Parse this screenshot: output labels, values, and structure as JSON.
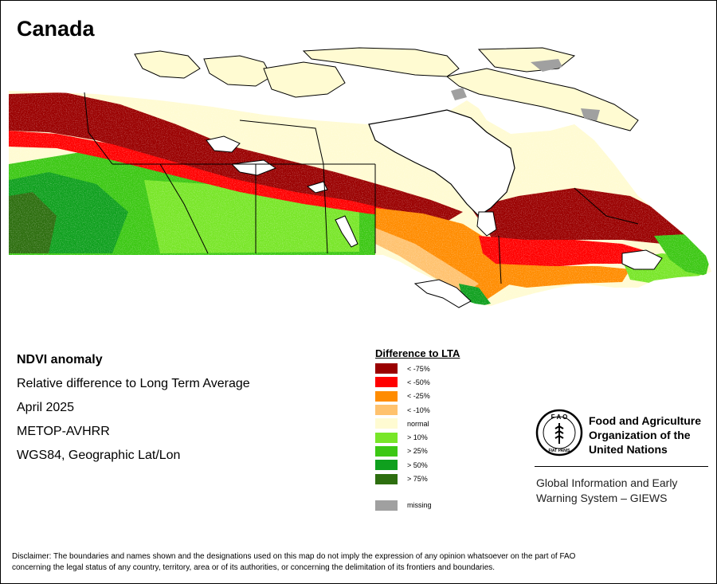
{
  "map": {
    "title": "Canada",
    "colors": {
      "dark_red": "#9a0000",
      "red": "#ff0000",
      "orange": "#ff8c00",
      "light_orange": "#ffc26e",
      "normal": "#fffbd2",
      "light_green": "#78e628",
      "green": "#3cc814",
      "mid_green": "#0fa01e",
      "dark_green": "#2d6e0f",
      "missing": "#a0a0a0",
      "water": "#ffffff",
      "border": "#000000"
    }
  },
  "info": {
    "product": "NDVI anomaly",
    "description": "Relative difference to Long Term Average",
    "period": "April 2025",
    "sensor": "METOP-AVHRR",
    "projection": "WGS84, Geographic Lat/Lon"
  },
  "legend": {
    "title": "Difference to LTA",
    "items": [
      {
        "label": "< -75%",
        "color": "#9a0000"
      },
      {
        "label": "< -50%",
        "color": "#ff0000"
      },
      {
        "label": "< -25%",
        "color": "#ff8c00"
      },
      {
        "label": "< -10%",
        "color": "#ffc26e"
      },
      {
        "label": "normal",
        "color": "#fffbd2"
      },
      {
        "label": "> 10%",
        "color": "#78e628"
      },
      {
        "label": "> 25%",
        "color": "#3cc814"
      },
      {
        "label": "> 50%",
        "color": "#0fa01e"
      },
      {
        "label": "> 75%",
        "color": "#2d6e0f"
      }
    ],
    "missing": {
      "label": "missing",
      "color": "#a0a0a0"
    }
  },
  "organization": {
    "name_line1": "Food and Agriculture",
    "name_line2": "Organization of the",
    "name_line3": "United Nations",
    "logo_letters": "F A O",
    "logo_motto": "FIAT PANIS",
    "system_line1": "Global Information and Early",
    "system_line2": "Warning System – GIEWS"
  },
  "disclaimer": {
    "line1": "Disclaimer: The boundaries and names shown and the designations used on this map do not imply the expression of any opinion whatsoever on the part of FAO",
    "line2": "concerning the legal status of any country, territory, area or of its authorities, or concerning the delimitation of its frontiers and boundaries."
  }
}
